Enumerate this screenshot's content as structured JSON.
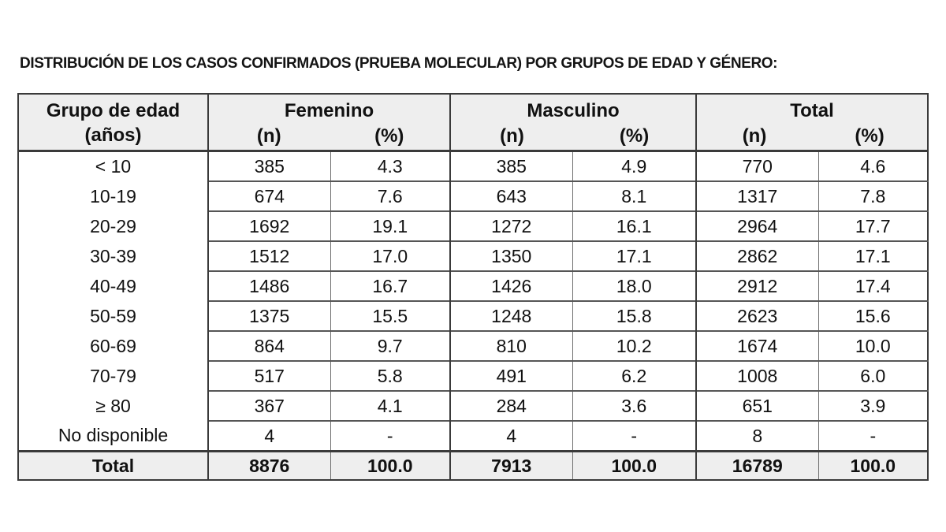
{
  "title": "DISTRIBUCIÓN DE LOS CASOS CONFIRMADOS (PRUEBA MOLECULAR) POR GRUPOS DE EDAD Y GÉNERO:",
  "colors": {
    "header_background": "#eeeeee",
    "major_border": "#3a3a3a",
    "row_border": "#565656",
    "text": "#111111"
  },
  "table": {
    "col1_header": {
      "line1": "Grupo de edad",
      "line2": "(años)"
    },
    "groups": [
      {
        "label": "Femenino",
        "sub": [
          "(n)",
          "(%)"
        ]
      },
      {
        "label": "Masculino",
        "sub": [
          "(n)",
          "(%)"
        ]
      },
      {
        "label": "Total",
        "sub": [
          "(n)",
          "(%)"
        ]
      }
    ],
    "rows": [
      {
        "age": "< 10",
        "cells": [
          "385",
          "4.3",
          "385",
          "4.9",
          "770",
          "4.6"
        ]
      },
      {
        "age": "10-19",
        "cells": [
          "674",
          "7.6",
          "643",
          "8.1",
          "1317",
          "7.8"
        ]
      },
      {
        "age": "20-29",
        "cells": [
          "1692",
          "19.1",
          "1272",
          "16.1",
          "2964",
          "17.7"
        ]
      },
      {
        "age": "30-39",
        "cells": [
          "1512",
          "17.0",
          "1350",
          "17.1",
          "2862",
          "17.1"
        ]
      },
      {
        "age": "40-49",
        "cells": [
          "1486",
          "16.7",
          "1426",
          "18.0",
          "2912",
          "17.4"
        ]
      },
      {
        "age": "50-59",
        "cells": [
          "1375",
          "15.5",
          "1248",
          "15.8",
          "2623",
          "15.6"
        ]
      },
      {
        "age": "60-69",
        "cells": [
          "864",
          "9.7",
          "810",
          "10.2",
          "1674",
          "10.0"
        ]
      },
      {
        "age": "70-79",
        "cells": [
          "517",
          "5.8",
          "491",
          "6.2",
          "1008",
          "6.0"
        ]
      },
      {
        "age": "≥ 80",
        "cells": [
          "367",
          "4.1",
          "284",
          "3.6",
          "651",
          "3.9"
        ]
      },
      {
        "age": "No disponible",
        "cells": [
          "4",
          "-",
          "4",
          "-",
          "8",
          "-"
        ]
      }
    ],
    "total_row": {
      "label": "Total",
      "cells": [
        "8876",
        "100.0",
        "7913",
        "100.0",
        "16789",
        "100.0"
      ]
    }
  }
}
